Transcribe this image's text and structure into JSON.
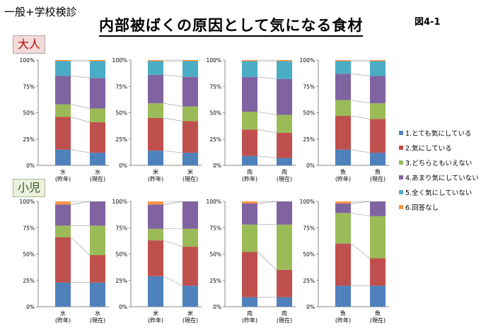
{
  "page": {
    "header_label": "一般+学校検診",
    "title": "内部被ばくの原因として気になる食材",
    "figure_label": "図4-1",
    "group_labels": [
      "大人",
      "小児"
    ]
  },
  "legend": [
    {
      "label": "1.とても気にしている",
      "color": "#4f81bd"
    },
    {
      "label": "2.気にしている",
      "color": "#c0504d"
    },
    {
      "label": "3.どちらともいえない",
      "color": "#9bbb59"
    },
    {
      "label": "4.あまり気にしていない",
      "color": "#8064a2"
    },
    {
      "label": "5.全く気にしていない",
      "color": "#4bacc6"
    },
    {
      "label": "6.回答なし",
      "color": "#f79646"
    }
  ],
  "chart_data": [
    {
      "type": "bar",
      "stacked": "percent",
      "group": "大人",
      "categories": [
        "水\n(昨年)",
        "水\n(現在)"
      ],
      "series": [
        {
          "name": "1.とても気にしている",
          "values": [
            15,
            12
          ]
        },
        {
          "name": "2.気にしている",
          "values": [
            31,
            29
          ]
        },
        {
          "name": "3.どちらともいえない",
          "values": [
            12,
            13
          ]
        },
        {
          "name": "4.あまり気にしていない",
          "values": [
            27,
            29
          ]
        },
        {
          "name": "5.全く気にしていない",
          "values": [
            14,
            16
          ]
        },
        {
          "name": "6.回答なし",
          "values": [
            1,
            1
          ]
        }
      ],
      "yticks": [
        "0%",
        "25%",
        "50%",
        "75%",
        "100%"
      ],
      "ylim": [
        0,
        100
      ]
    },
    {
      "type": "bar",
      "stacked": "percent",
      "group": "大人",
      "categories": [
        "米\n(昨年)",
        "米\n(現在)"
      ],
      "series": [
        {
          "name": "1.とても気にしている",
          "values": [
            14,
            12
          ]
        },
        {
          "name": "2.気にしている",
          "values": [
            31,
            30
          ]
        },
        {
          "name": "3.どちらともいえない",
          "values": [
            14,
            14
          ]
        },
        {
          "name": "4.あまり気にしていない",
          "values": [
            27,
            28
          ]
        },
        {
          "name": "5.全く気にしていない",
          "values": [
            13,
            15
          ]
        },
        {
          "name": "6.回答なし",
          "values": [
            1,
            1
          ]
        }
      ],
      "yticks": [
        "0%",
        "25%",
        "50%",
        "75%",
        "100%"
      ],
      "ylim": [
        0,
        100
      ]
    },
    {
      "type": "bar",
      "stacked": "percent",
      "group": "大人",
      "categories": [
        "肉\n(昨年)",
        "肉\n(現在)"
      ],
      "series": [
        {
          "name": "1.とても気にしている",
          "values": [
            9,
            7
          ]
        },
        {
          "name": "2.気にしている",
          "values": [
            25,
            24
          ]
        },
        {
          "name": "3.どちらともいえない",
          "values": [
            17,
            17
          ]
        },
        {
          "name": "4.あまり気にしていない",
          "values": [
            33,
            34
          ]
        },
        {
          "name": "5.全く気にしていない",
          "values": [
            15,
            17
          ]
        },
        {
          "name": "6.回答なし",
          "values": [
            1,
            1
          ]
        }
      ],
      "yticks": [
        "0%",
        "25%",
        "50%",
        "75%",
        "100%"
      ],
      "ylim": [
        0,
        100
      ]
    },
    {
      "type": "bar",
      "stacked": "percent",
      "group": "大人",
      "categories": [
        "魚\n(昨年)",
        "魚\n(現在)"
      ],
      "series": [
        {
          "name": "1.とても気にしている",
          "values": [
            15,
            12
          ]
        },
        {
          "name": "2.気にしている",
          "values": [
            32,
            32
          ]
        },
        {
          "name": "3.どちらともいえない",
          "values": [
            15,
            15
          ]
        },
        {
          "name": "4.あまり気にしていない",
          "values": [
            25,
            26
          ]
        },
        {
          "name": "5.全く気にしていない",
          "values": [
            12,
            14
          ]
        },
        {
          "name": "6.回答なし",
          "values": [
            1,
            1
          ]
        }
      ],
      "yticks": [
        "0%",
        "25%",
        "50%",
        "75%",
        "100%"
      ],
      "ylim": [
        0,
        100
      ]
    },
    {
      "type": "bar",
      "stacked": "percent",
      "group": "小児",
      "categories": [
        "水\n(昨年)",
        "水\n(現在)"
      ],
      "series": [
        {
          "name": "1.とても気にしている",
          "values": [
            23,
            23
          ]
        },
        {
          "name": "2.気にしている",
          "values": [
            43,
            26
          ]
        },
        {
          "name": "3.どちらともいえない",
          "values": [
            11,
            28
          ]
        },
        {
          "name": "4.あまり気にしていない",
          "values": [
            20,
            23
          ]
        },
        {
          "name": "5.全く気にしていない",
          "values": [
            0,
            0
          ]
        },
        {
          "name": "6.回答なし",
          "values": [
            3,
            0
          ]
        }
      ],
      "yticks": [
        "0%",
        "25%",
        "50%",
        "75%",
        "100%"
      ],
      "ylim": [
        0,
        100
      ]
    },
    {
      "type": "bar",
      "stacked": "percent",
      "group": "小児",
      "categories": [
        "米\n(昨年)",
        "米\n(現在)"
      ],
      "series": [
        {
          "name": "1.とても気にしている",
          "values": [
            29,
            20
          ]
        },
        {
          "name": "2.気にしている",
          "values": [
            34,
            37
          ]
        },
        {
          "name": "3.どちらともいえない",
          "values": [
            11,
            17
          ]
        },
        {
          "name": "4.あまり気にしていない",
          "values": [
            23,
            26
          ]
        },
        {
          "name": "5.全く気にしていない",
          "values": [
            0,
            0
          ]
        },
        {
          "name": "6.回答なし",
          "values": [
            3,
            0
          ]
        }
      ],
      "yticks": [
        "0%",
        "25%",
        "50%",
        "75%",
        "100%"
      ],
      "ylim": [
        0,
        100
      ]
    },
    {
      "type": "bar",
      "stacked": "percent",
      "group": "小児",
      "categories": [
        "肉\n(昨年)",
        "肉\n(現在)"
      ],
      "series": [
        {
          "name": "1.とても気にしている",
          "values": [
            9,
            9
          ]
        },
        {
          "name": "2.気にしている",
          "values": [
            43,
            26
          ]
        },
        {
          "name": "3.どちらともいえない",
          "values": [
            26,
            43
          ]
        },
        {
          "name": "4.あまり気にしていない",
          "values": [
            20,
            22
          ]
        },
        {
          "name": "5.全く気にしていない",
          "values": [
            0,
            0
          ]
        },
        {
          "name": "6.回答なし",
          "values": [
            2,
            0
          ]
        }
      ],
      "yticks": [
        "0%",
        "25%",
        "50%",
        "75%",
        "100%"
      ],
      "ylim": [
        0,
        100
      ]
    },
    {
      "type": "bar",
      "stacked": "percent",
      "group": "小児",
      "categories": [
        "魚\n(昨年)",
        "魚\n(現在)"
      ],
      "series": [
        {
          "name": "1.とても気にしている",
          "values": [
            20,
            20
          ]
        },
        {
          "name": "2.気にしている",
          "values": [
            40,
            26
          ]
        },
        {
          "name": "3.どちらともいえない",
          "values": [
            29,
            40
          ]
        },
        {
          "name": "4.あまり気にしていない",
          "values": [
            9,
            14
          ]
        },
        {
          "name": "5.全く気にしていない",
          "values": [
            0,
            0
          ]
        },
        {
          "name": "6.回答なし",
          "values": [
            2,
            0
          ]
        }
      ],
      "yticks": [
        "0%",
        "25%",
        "50%",
        "75%",
        "100%"
      ],
      "ylim": [
        0,
        100
      ]
    }
  ]
}
